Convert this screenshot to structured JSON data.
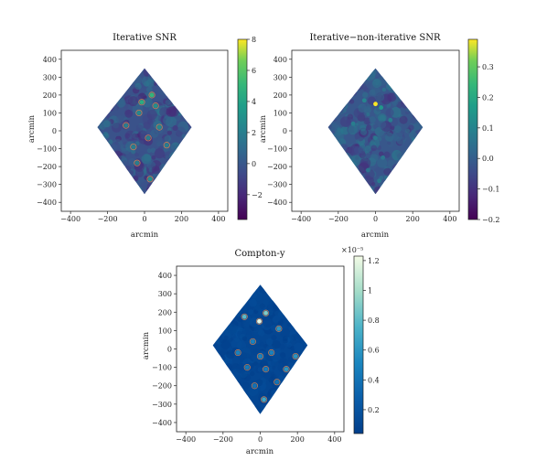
{
  "chart_data": [
    {
      "type": "heatmap",
      "title": "Iterative SNR",
      "xlabel": "arcmin",
      "ylabel": "arcmin",
      "xlim": [
        -450,
        450
      ],
      "ylim": [
        -450,
        450
      ],
      "xticks": [
        -400,
        -200,
        0,
        200,
        400
      ],
      "yticks": [
        400,
        300,
        200,
        100,
        0,
        -100,
        -200,
        -300,
        -400
      ],
      "footprint": "diamond",
      "footprint_vertices": [
        [
          0,
          350
        ],
        [
          255,
          20
        ],
        [
          0,
          -355
        ],
        [
          -255,
          20
        ]
      ],
      "colormap": "viridis",
      "background_value": -0.3,
      "colorbar": {
        "min": -3.6,
        "max": 8.0,
        "ticks": [
          8,
          6,
          4,
          2,
          0,
          -2
        ],
        "offset_text": ""
      },
      "hotspots": [
        [
          40,
          200,
          5
        ],
        [
          -15,
          160,
          4.5
        ],
        [
          60,
          140,
          3
        ],
        [
          -30,
          100,
          2.5
        ],
        [
          80,
          20,
          2.5
        ],
        [
          -100,
          30,
          2
        ],
        [
          20,
          -40,
          2
        ],
        [
          -60,
          -90,
          2
        ],
        [
          30,
          -270,
          3
        ],
        [
          120,
          -80,
          2
        ],
        [
          -40,
          -180,
          2
        ]
      ]
    },
    {
      "type": "heatmap",
      "title": "Iterative−non-iterative SNR",
      "xlabel": "arcmin",
      "ylabel": "arcmin",
      "xlim": [
        -450,
        450
      ],
      "ylim": [
        -450,
        450
      ],
      "xticks": [
        -400,
        -200,
        0,
        200,
        400
      ],
      "yticks": [
        400,
        300,
        200,
        100,
        0,
        -100,
        -200,
        -300,
        -400
      ],
      "footprint": "diamond",
      "footprint_vertices": [
        [
          0,
          350
        ],
        [
          255,
          20
        ],
        [
          0,
          -355
        ],
        [
          -255,
          20
        ]
      ],
      "colormap": "viridis",
      "background_value": -0.02,
      "colorbar": {
        "min": -0.2,
        "max": 0.39,
        "ticks": [
          0.3,
          0.2,
          0.1,
          0.0,
          -0.1,
          -0.2
        ],
        "offset_text": ""
      },
      "hotspots": [
        [
          0,
          150,
          0.39
        ],
        [
          30,
          130,
          0.15
        ],
        [
          -60,
          170,
          0.1
        ],
        [
          80,
          60,
          0.08
        ],
        [
          -120,
          40,
          0.08
        ],
        [
          0,
          -40,
          0.06
        ],
        [
          40,
          -150,
          0.06
        ],
        [
          -40,
          -220,
          0.05
        ],
        [
          20,
          -280,
          0.07
        ]
      ]
    },
    {
      "type": "heatmap",
      "title": "Compton-y",
      "xlabel": "arcmin",
      "ylabel": "arcmin",
      "xlim": [
        -450,
        450
      ],
      "ylim": [
        -450,
        450
      ],
      "xticks": [
        -400,
        -200,
        0,
        200,
        400
      ],
      "yticks": [
        400,
        300,
        200,
        100,
        0,
        -100,
        -200,
        -300,
        -400
      ],
      "footprint": "diamond",
      "footprint_vertices": [
        [
          0,
          350
        ],
        [
          255,
          20
        ],
        [
          0,
          -355
        ],
        [
          -255,
          20
        ]
      ],
      "colormap": "ocean-blue",
      "background_value": 0.1,
      "colorbar": {
        "min": 0.04,
        "max": 1.23,
        "ticks": [
          1.2,
          1.0,
          0.8,
          0.6,
          0.4,
          0.2
        ],
        "offset_text": "×10⁻⁵"
      },
      "hotspots": [
        [
          -5,
          150,
          1.2
        ],
        [
          30,
          195,
          0.9
        ],
        [
          -85,
          175,
          0.8
        ],
        [
          100,
          110,
          0.6
        ],
        [
          -40,
          40,
          0.5
        ],
        [
          60,
          -20,
          0.5
        ],
        [
          190,
          -40,
          0.6
        ],
        [
          -120,
          -20,
          0.5
        ],
        [
          140,
          -110,
          0.6
        ],
        [
          -70,
          -100,
          0.45
        ],
        [
          30,
          -110,
          0.45
        ],
        [
          -30,
          -200,
          0.4
        ],
        [
          90,
          -180,
          0.4
        ],
        [
          20,
          -275,
          0.7
        ],
        [
          0,
          -40,
          0.5
        ]
      ]
    }
  ]
}
